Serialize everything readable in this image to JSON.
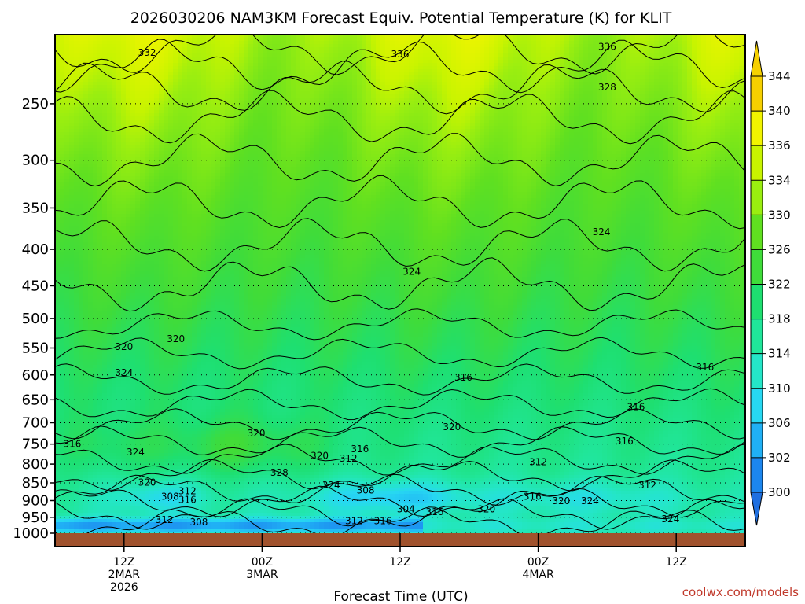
{
  "chart_data": {
    "type": "heatmap",
    "title": "2026030206 NAM3KM Forecast Equiv. Potential Temperature (K) for KLIT",
    "xlabel": "Forecast Time (UTC)",
    "ylabel": "",
    "y_scale": "log-pressure",
    "y_inverted": true,
    "y_ticks": [
      250,
      300,
      350,
      400,
      450,
      500,
      550,
      600,
      650,
      700,
      750,
      800,
      850,
      900,
      950,
      1000
    ],
    "ylim": [
      1000,
      200
    ],
    "x_ticks": [
      {
        "lines": [
          "12Z",
          "2MAR",
          "2026"
        ],
        "hour": 6
      },
      {
        "lines": [
          "00Z",
          "3MAR"
        ],
        "hour": 18
      },
      {
        "lines": [
          "12Z"
        ],
        "hour": 30
      },
      {
        "lines": [
          "00Z",
          "4MAR"
        ],
        "hour": 42
      },
      {
        "lines": [
          "12Z"
        ],
        "hour": 54
      }
    ],
    "xlim": [
      0,
      60
    ],
    "grid": true,
    "colorbar": {
      "orientation": "vertical",
      "placement": "right",
      "levels": [
        300,
        302,
        306,
        310,
        314,
        318,
        322,
        326,
        330,
        334,
        336,
        340,
        344
      ],
      "colors": [
        "#1f6fe0",
        "#1c86ee",
        "#20b0f5",
        "#27d8f2",
        "#24e6c8",
        "#20e69a",
        "#1edf70",
        "#3fdc3a",
        "#60e020",
        "#9aee10",
        "#c8f400",
        "#f2f400",
        "#f6d000"
      ]
    },
    "contour_labels": [
      {
        "text": "332",
        "hour": 8.0,
        "p": 212
      },
      {
        "text": "336",
        "hour": 30.0,
        "p": 213
      },
      {
        "text": "336",
        "hour": 48.0,
        "p": 208
      },
      {
        "text": "328",
        "hour": 48.0,
        "p": 237
      },
      {
        "text": "324",
        "hour": 47.5,
        "p": 378
      },
      {
        "text": "324",
        "hour": 31.0,
        "p": 430
      },
      {
        "text": "320",
        "hour": 6.0,
        "p": 548
      },
      {
        "text": "320",
        "hour": 10.5,
        "p": 534
      },
      {
        "text": "324",
        "hour": 6.0,
        "p": 596
      },
      {
        "text": "316",
        "hour": 35.5,
        "p": 605
      },
      {
        "text": "316",
        "hour": 56.5,
        "p": 585
      },
      {
        "text": "316",
        "hour": 50.5,
        "p": 665
      },
      {
        "text": "320",
        "hour": 34.5,
        "p": 710
      },
      {
        "text": "320",
        "hour": 17.5,
        "p": 724
      },
      {
        "text": "316",
        "hour": 49.5,
        "p": 743
      },
      {
        "text": "316",
        "hour": 1.5,
        "p": 750
      },
      {
        "text": "316",
        "hour": 26.5,
        "p": 762
      },
      {
        "text": "324",
        "hour": 7.0,
        "p": 770
      },
      {
        "text": "320",
        "hour": 23.0,
        "p": 779
      },
      {
        "text": "312",
        "hour": 25.5,
        "p": 786
      },
      {
        "text": "312",
        "hour": 42.0,
        "p": 795
      },
      {
        "text": "328",
        "hour": 19.5,
        "p": 822
      },
      {
        "text": "320",
        "hour": 8.0,
        "p": 849
      },
      {
        "text": "324",
        "hour": 24.0,
        "p": 856
      },
      {
        "text": "312",
        "hour": 51.5,
        "p": 857
      },
      {
        "text": "308",
        "hour": 27.0,
        "p": 871
      },
      {
        "text": "312",
        "hour": 11.5,
        "p": 873
      },
      {
        "text": "308",
        "hour": 10.0,
        "p": 889
      },
      {
        "text": "316",
        "hour": 41.5,
        "p": 889
      },
      {
        "text": "316",
        "hour": 11.5,
        "p": 898
      },
      {
        "text": "320",
        "hour": 44.0,
        "p": 901
      },
      {
        "text": "324",
        "hour": 46.5,
        "p": 901
      },
      {
        "text": "304",
        "hour": 30.5,
        "p": 926
      },
      {
        "text": "320",
        "hour": 37.5,
        "p": 926
      },
      {
        "text": "316",
        "hour": 33.0,
        "p": 934
      },
      {
        "text": "324",
        "hour": 53.5,
        "p": 955
      },
      {
        "text": "312",
        "hour": 9.5,
        "p": 958
      },
      {
        "text": "308",
        "hour": 12.5,
        "p": 965
      },
      {
        "text": "312",
        "hour": 26.0,
        "p": 962
      },
      {
        "text": "316",
        "hour": 28.5,
        "p": 962
      }
    ]
  },
  "credit": "coolwx.com/models"
}
